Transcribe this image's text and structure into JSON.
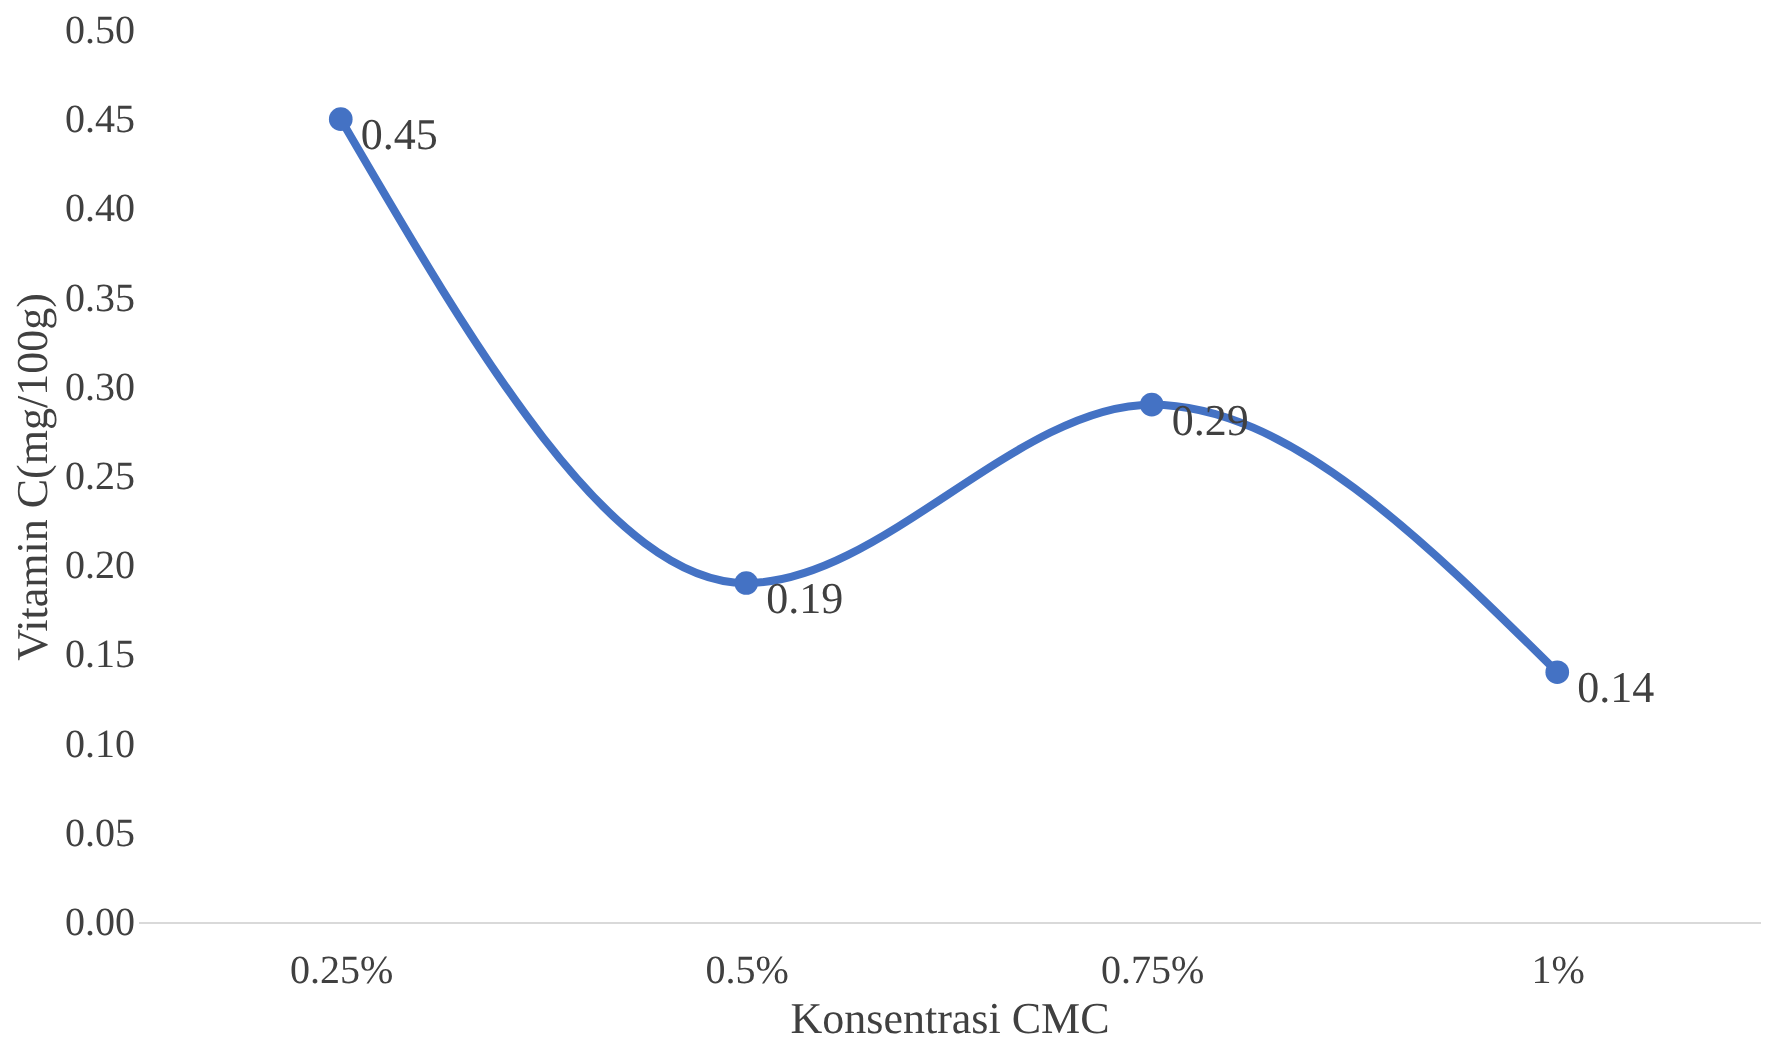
{
  "chart_data": {
    "type": "line",
    "xlabel": "Konsentrasi CMC",
    "ylabel": "Vitamin C(mg/100g)",
    "categories": [
      "0.25%",
      "0.5%",
      "0.75%",
      "1%"
    ],
    "series": [
      {
        "color": "#4472c4",
        "values": [
          0.45,
          0.19,
          0.29,
          0.14
        ]
      }
    ],
    "ylim": [
      0,
      0.5
    ],
    "yticks": [
      {
        "value": 0,
        "label": "0.00"
      },
      {
        "value": 0.05,
        "label": "0.05"
      },
      {
        "value": 0.1,
        "label": "0.10"
      },
      {
        "value": 0.15,
        "label": "0.15"
      },
      {
        "value": 0.2,
        "label": "0.20"
      },
      {
        "value": 0.25,
        "label": "0.25"
      },
      {
        "value": 0.3,
        "label": "0.30"
      },
      {
        "value": 0.35,
        "label": "0.35"
      },
      {
        "value": 0.4,
        "label": "0.40"
      },
      {
        "value": 0.45,
        "label": "0.45"
      },
      {
        "value": 0.5,
        "label": "0.50"
      }
    ],
    "data_labels": true,
    "marker": "circle",
    "grid": false
  }
}
